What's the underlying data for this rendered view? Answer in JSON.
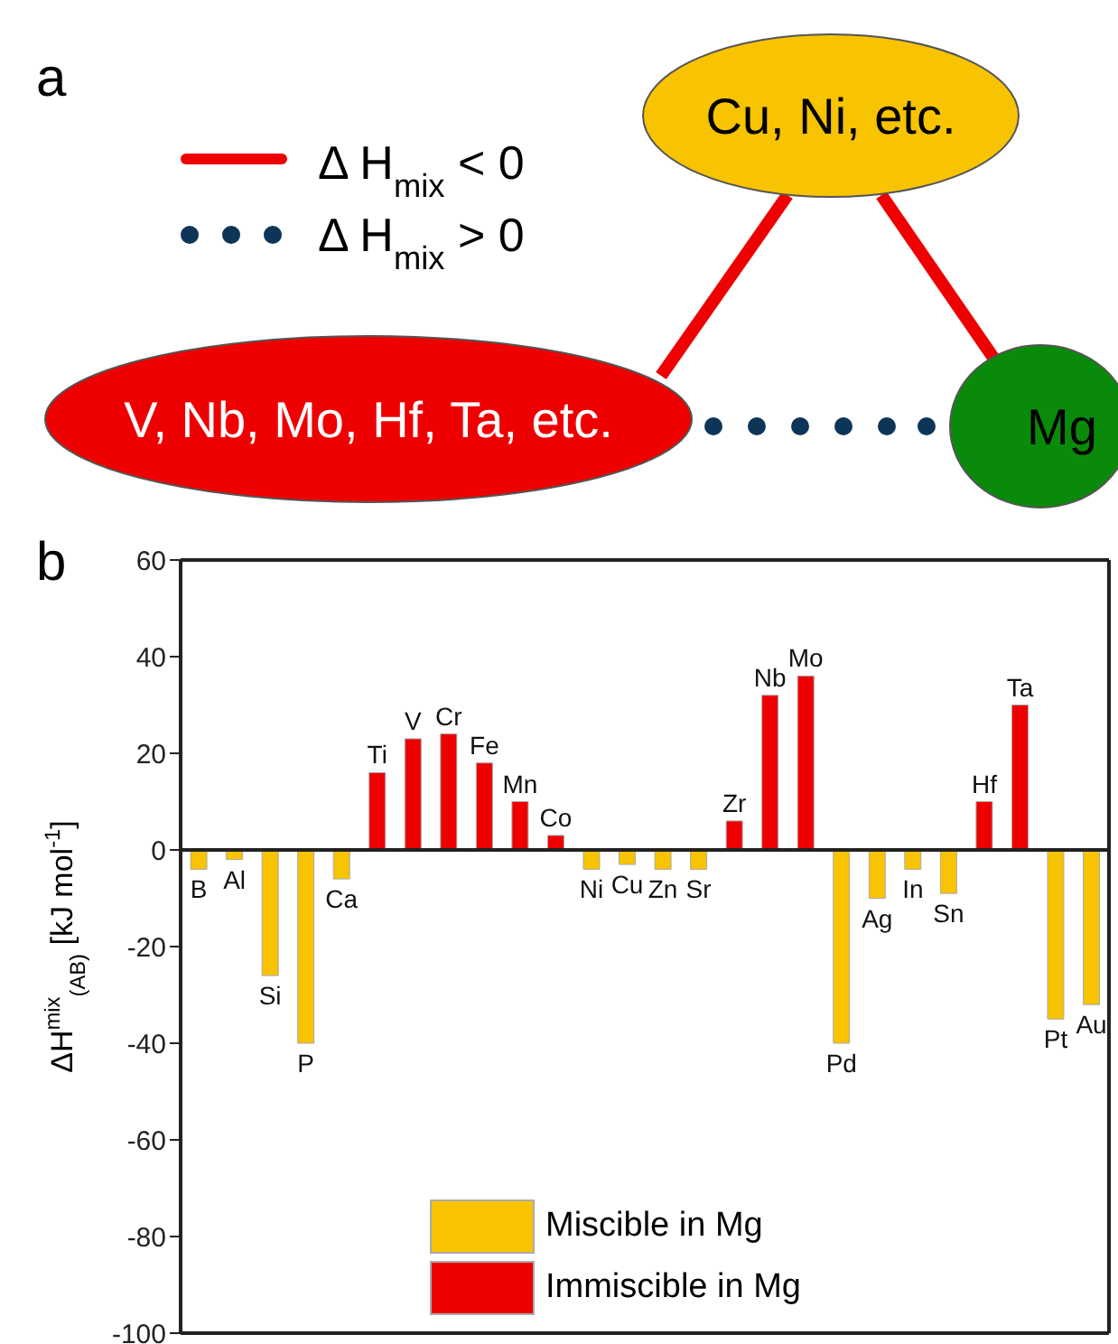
{
  "chart_data": [
    {
      "type": "other",
      "title": "a",
      "annotations": [
        "Δ H$_{mix}$ < 0",
        "Δ H$_{mix}$ > 0",
        "Cu, Ni, etc.",
        "V, Nb, Mo, Hf, Ta, etc.",
        "Mg"
      ]
    },
    {
      "type": "bar",
      "title": "b",
      "ylabel": "ΔH$^{mix}$$_{(AB)}$ [kJ mol$^{-1}$]",
      "stacked": true,
      "legend": "bottom",
      "categories": [
        "B",
        "Al",
        "Si",
        "P",
        "Ca",
        "Ti",
        "V",
        "Cr",
        "Fe",
        "Mn",
        "Co",
        "Ni",
        "Cu",
        "Zn",
        "Sr",
        "Zr",
        "Nb",
        "Mo",
        "Pd",
        "Ag",
        "In",
        "Sn",
        "Hf",
        "Ta",
        "Pt",
        "Au"
      ],
      "series": [
        {
          "name": "Miscible in Mg",
          "color": "#f8c300",
          "values": [
            -4,
            -2,
            -26,
            -40,
            -6,
            null,
            null,
            null,
            null,
            null,
            null,
            -4,
            -3,
            -4,
            -4,
            null,
            null,
            null,
            -40,
            -10,
            -4,
            -9,
            null,
            null,
            -35,
            -32
          ]
        },
        {
          "name": "Immiscible in Mg",
          "color": "#ee0000",
          "values": [
            null,
            null,
            null,
            null,
            null,
            16,
            23,
            24,
            18,
            10,
            3,
            null,
            null,
            null,
            null,
            6,
            32,
            36,
            null,
            null,
            null,
            null,
            10,
            30,
            null,
            null
          ]
        }
      ],
      "ylim": [
        -100,
        60
      ],
      "yticks": [
        -100,
        -80,
        -60,
        -40,
        -20,
        0,
        20,
        40,
        60
      ]
    }
  ]
}
